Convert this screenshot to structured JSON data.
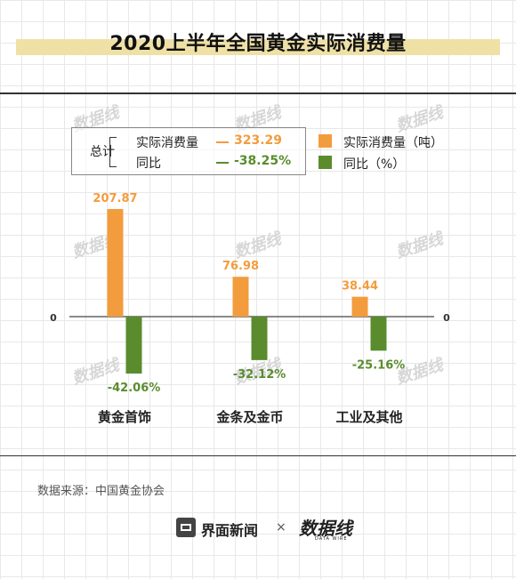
{
  "title": "2020上半年全国黄金实际消费量",
  "summary": {
    "label": "总计",
    "rows": [
      {
        "name": "实际消费量",
        "value": "323.29",
        "color": "#f39c3d"
      },
      {
        "name": "同比",
        "value": "-38.25%",
        "color": "#5a8c2e"
      }
    ]
  },
  "legend": [
    {
      "label": "实际消费量（吨）",
      "color": "#f39c3d"
    },
    {
      "label": "同比（%）",
      "color": "#5a8c2e"
    }
  ],
  "source": "数据来源：中国黄金协会",
  "footer": {
    "brand": "界面新闻",
    "separator": "×",
    "partner": "数据线",
    "partner_sub": "DATA WIRE"
  },
  "watermark": "数据线",
  "chart_data": {
    "type": "bar",
    "categories": [
      "黄金首饰",
      "金条及金币",
      "工业及其他"
    ],
    "series": [
      {
        "name": "实际消费量（吨）",
        "values": [
          207.87,
          76.98,
          38.44
        ],
        "labels": [
          "207.87",
          "76.98",
          "38.44"
        ],
        "color": "#f39c3d"
      },
      {
        "name": "同比（%）",
        "values": [
          -42.06,
          -32.12,
          -25.16
        ],
        "labels": [
          "-42.06%",
          "-32.12%",
          "-25.16%"
        ],
        "color": "#5a8c2e"
      }
    ],
    "zero_label": "0",
    "title": "2020上半年全国黄金实际消费量"
  }
}
